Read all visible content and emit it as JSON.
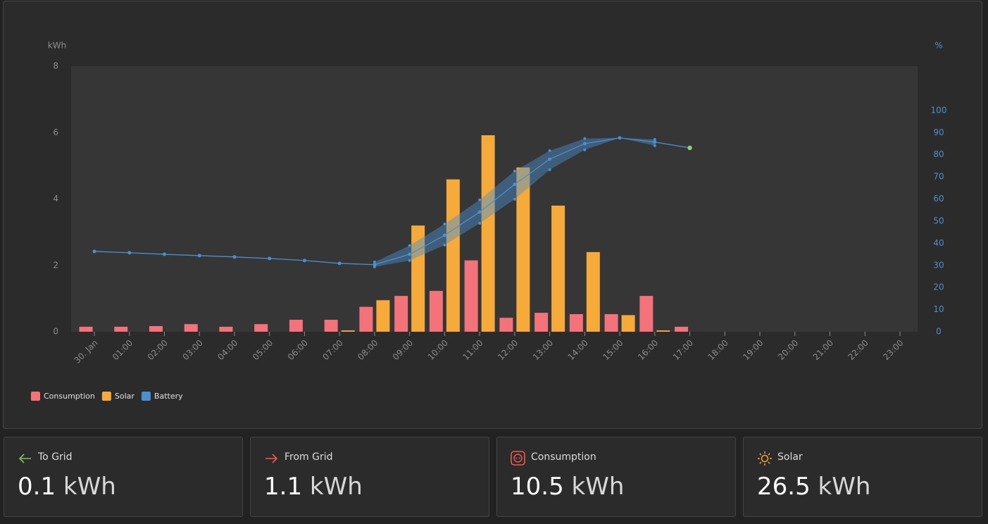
{
  "chart_data": {
    "type": "bar",
    "y_label": "kWh",
    "y2_label": "%",
    "categories": [
      "30. Jan",
      "01:00",
      "02:00",
      "03:00",
      "04:00",
      "05:00",
      "06:00",
      "07:00",
      "08:00",
      "09:00",
      "10:00",
      "11:00",
      "12:00",
      "13:00",
      "14:00",
      "15:00",
      "16:00",
      "17:00",
      "18:00",
      "19:00",
      "20:00",
      "21:00",
      "22:00",
      "23:00"
    ],
    "series": [
      {
        "name": "Consumption",
        "color": "#f4727a",
        "values": [
          0.15,
          0.15,
          0.17,
          0.23,
          0.15,
          0.23,
          0.36,
          0.36,
          0.75,
          1.08,
          1.23,
          2.15,
          0.42,
          0.57,
          0.53,
          0.53,
          1.08,
          0.15,
          null,
          null,
          null,
          null,
          null,
          null
        ]
      },
      {
        "name": "Solar",
        "color": "#f5aa3a",
        "values": [
          null,
          null,
          null,
          null,
          null,
          null,
          null,
          0.04,
          0.95,
          3.2,
          4.59,
          5.92,
          4.95,
          3.8,
          2.4,
          0.5,
          0.04,
          null,
          null,
          null,
          null,
          null,
          null,
          null
        ]
      },
      {
        "name": "Battery",
        "color": "#4a90d0",
        "axis": "y2",
        "type": "line",
        "values": [
          36.3,
          35.7,
          35,
          34.4,
          33.8,
          33.1,
          32.2,
          30.9,
          30.3,
          35,
          43.6,
          54.1,
          66.6,
          78,
          85,
          87.6,
          85.7,
          83.1,
          null,
          null,
          null,
          null,
          null,
          null
        ]
      }
    ],
    "battery_range": {
      "low": [
        null,
        null,
        null,
        null,
        null,
        null,
        null,
        null,
        29.3,
        32.2,
        39.2,
        49,
        59.9,
        73.2,
        82.2,
        87.6,
        84.1,
        null,
        null,
        null,
        null,
        null,
        null,
        null
      ],
      "high": [
        null,
        null,
        null,
        null,
        null,
        null,
        null,
        null,
        31.5,
        38.9,
        48.7,
        59.6,
        72.6,
        81.8,
        87.3,
        87.6,
        86.9,
        null,
        null,
        null,
        null,
        null,
        null,
        null
      ]
    },
    "ylim": [
      0,
      8
    ],
    "yticks": [
      0,
      2,
      4,
      6,
      8
    ],
    "y2lim": [
      0,
      120
    ],
    "y2ticks": [
      0,
      10,
      20,
      30,
      40,
      50,
      60,
      70,
      80,
      90,
      100
    ],
    "current_color": "#8fd16a"
  },
  "cards": [
    {
      "title": "To Grid",
      "value": "0.1",
      "unit": "kWh"
    },
    {
      "title": "From Grid",
      "value": "1.1",
      "unit": "kWh"
    },
    {
      "title": "Consumption",
      "value": "10.5",
      "unit": "kWh"
    },
    {
      "title": "Solar",
      "value": "26.5",
      "unit": "kWh"
    }
  ]
}
